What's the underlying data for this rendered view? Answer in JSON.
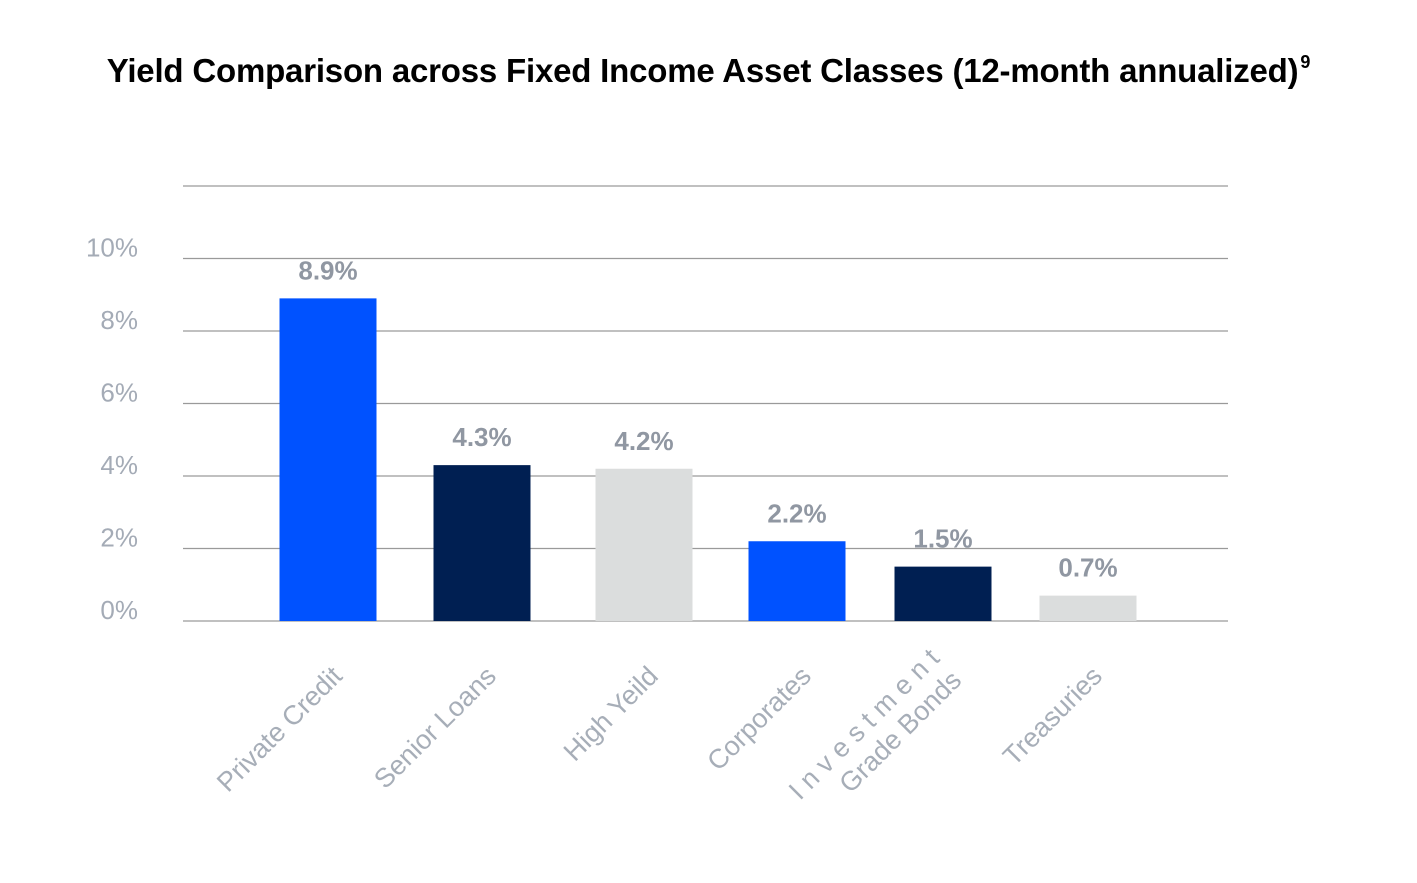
{
  "chart_data": {
    "type": "bar",
    "title": "Yield Comparison across Fixed Income Asset Classes (12-month annualized)",
    "title_footnote": "9",
    "xlabel": "",
    "ylabel": "",
    "categories": [
      [
        "Private Credit"
      ],
      [
        "Senior Loans"
      ],
      [
        "High Yeild"
      ],
      [
        "Corporates"
      ],
      [
        "I n v e s t m e n t",
        "Grade Bonds"
      ],
      [
        "Treasuries"
      ]
    ],
    "values": [
      8.9,
      4.3,
      4.2,
      2.2,
      1.5,
      0.7
    ],
    "data_labels": [
      "8.9%",
      "4.3%",
      "4.2%",
      "2.2%",
      "1.5%",
      "0.7%"
    ],
    "bar_colors": [
      "#0052ff",
      "#001f52",
      "#dbdddd",
      "#0052ff",
      "#001f52",
      "#dbdddd"
    ],
    "ylim": [
      0,
      12
    ],
    "yticks": [
      0,
      2,
      4,
      6,
      8,
      10
    ],
    "ytick_labels": [
      "0%",
      "2%",
      "4%",
      "6%",
      "8%",
      "10%"
    ],
    "grid": true,
    "legend": "none"
  }
}
